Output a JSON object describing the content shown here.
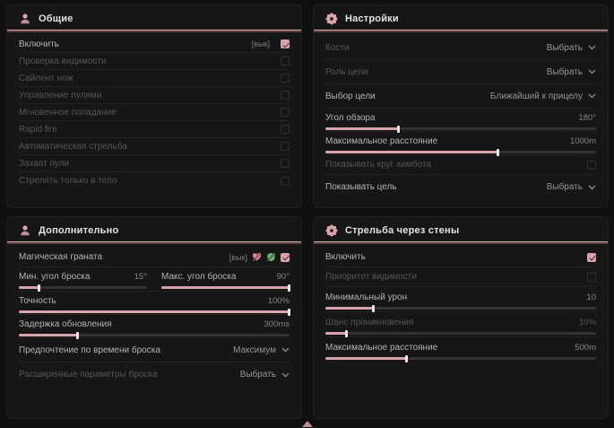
{
  "colors": {
    "accent": "#d9a3ab",
    "panel_bg": "#171616",
    "green_icon": "#6fae6f"
  },
  "general": {
    "title": "Общие",
    "rows": [
      {
        "label": "Включить",
        "key": "[вык]",
        "checked": true,
        "dim": false
      },
      {
        "label": "Проверка видимости",
        "checked": false,
        "dim": true
      },
      {
        "label": "Сайлент нож",
        "checked": false,
        "dim": true
      },
      {
        "label": "Управление пулями",
        "checked": false,
        "dim": true
      },
      {
        "label": "Мгновенное попадание",
        "checked": false,
        "dim": true
      },
      {
        "label": "Rapid fire",
        "checked": false,
        "dim": true
      },
      {
        "label": "Автоматическая стрельба",
        "checked": false,
        "dim": true
      },
      {
        "label": "Захват пули",
        "checked": false,
        "dim": true
      },
      {
        "label": "Стрелять только в тело",
        "checked": false,
        "dim": true
      }
    ]
  },
  "settings": {
    "title": "Настройки",
    "rows": [
      {
        "label": "Кости",
        "value": "Выбрать",
        "dim": true
      },
      {
        "label": "Роль цели",
        "value": "Выбрать",
        "dim": true
      },
      {
        "label": "Выбор цели",
        "value": "Ближайший к прицелу",
        "dim": false
      },
      {
        "label": "Угол обзора",
        "value": "180°",
        "fill": 27,
        "dim": false
      },
      {
        "label": "Максимальное расстояние",
        "value": "1000m",
        "fill": 64,
        "dim": false
      },
      {
        "label": "Показывать круг аимбота",
        "checked": false,
        "dim": true
      },
      {
        "label": "Показывать цель",
        "value": "Выбрать",
        "dim": false
      }
    ]
  },
  "extra": {
    "title": "Дополнительно",
    "grenade": {
      "label": "Магическая граната",
      "key": "[вык]",
      "checked": true,
      "dim": false
    },
    "min_angle": {
      "label": "Мин. угол броска",
      "value": "15°",
      "fill": 16
    },
    "max_angle": {
      "label": "Макс. угол броска",
      "value": "90°",
      "fill": 100
    },
    "accuracy": {
      "label": "Точность",
      "value": "100%",
      "fill": 100
    },
    "delay": {
      "label": "Задержка обновления",
      "value": "300ms",
      "fill": 22
    },
    "time_pref": {
      "label": "Предпочтение по времени броска",
      "value": "Максимум",
      "dim": false
    },
    "advanced": {
      "label": "Расширенные параметры броска",
      "value": "Выбрать",
      "dim": true
    }
  },
  "walls": {
    "title": "Стрельба через стены",
    "rows": [
      {
        "label": "Включить",
        "checked": true,
        "dim": false
      },
      {
        "label": "Приоритет видимости",
        "checked": false,
        "dim": true
      },
      {
        "label": "Минимальный урон",
        "value": "10",
        "fill": 18,
        "dim": false
      },
      {
        "label": "Шанс проникновения",
        "value": "10%",
        "fill": 8,
        "dim": true
      },
      {
        "label": "Максимальное расстояние",
        "value": "500m",
        "fill": 30,
        "dim": false
      }
    ]
  }
}
